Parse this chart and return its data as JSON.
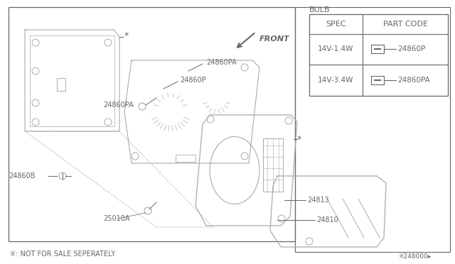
{
  "bg_color": "#ffffff",
  "line_color": "#aaaaaa",
  "dark_line": "#666666",
  "text_color": "#555555",
  "table_title": "BULB",
  "table_headers": [
    "SPEC",
    "PART CODE"
  ],
  "table_row1_spec": "14V-1.4W",
  "table_row1_code": "24860P",
  "table_row2_spec": "14V-3.4W",
  "table_row2_code": "24860PA",
  "note": "※: NOT FOR SALE SEPERATELY",
  "page_code": "※248000▸",
  "front_label": "FRONT"
}
